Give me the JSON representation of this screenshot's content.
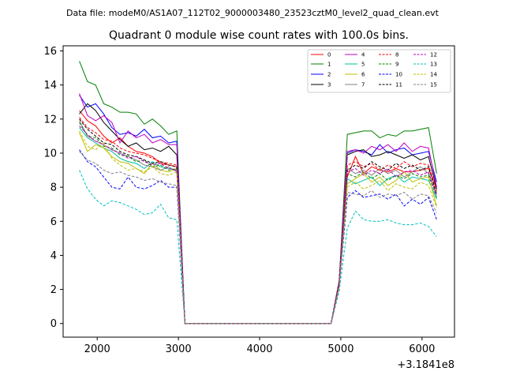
{
  "chart_data": {
    "type": "line",
    "suptitle": "Data file: modeM0/AS1A07_112T02_9000003480_23523cztM0_level2_quad_clean.evt",
    "title": "Quadrant 0 module wise count rates with 100.0s bins.",
    "x_offset_label": "+3.1841e8",
    "xlim": [
      1580,
      6400
    ],
    "ylim": [
      -0.8,
      16.3
    ],
    "xticks": [
      2000,
      3000,
      4000,
      5000,
      6000
    ],
    "yticks": [
      0,
      2,
      4,
      6,
      8,
      10,
      12,
      14,
      16
    ],
    "legend_position": "top-right",
    "x": [
      1780,
      1880,
      1980,
      2080,
      2180,
      2280,
      2380,
      2480,
      2580,
      2680,
      2780,
      2880,
      2980,
      3080,
      3180,
      3280,
      3380,
      3480,
      3580,
      3680,
      3780,
      3880,
      3980,
      4080,
      4180,
      4280,
      4380,
      4480,
      4580,
      4680,
      4780,
      4880,
      4980,
      5080,
      5180,
      5280,
      5380,
      5480,
      5580,
      5680,
      5780,
      5880,
      5980,
      6080,
      6180
    ],
    "series": [
      {
        "name": "0",
        "color": "#ff0000",
        "dash": "solid",
        "values": [
          12.5,
          11.9,
          11.6,
          11.0,
          10.6,
          10.9,
          10.4,
          10.1,
          10.0,
          9.8,
          9.4,
          9.3,
          9.2,
          0.0,
          0.0,
          0.0,
          0.0,
          0.0,
          0.0,
          0.0,
          0.0,
          0.0,
          0.0,
          0.0,
          0.0,
          0.0,
          0.0,
          0.0,
          0.0,
          0.0,
          0.0,
          0.0,
          2.5,
          8.6,
          9.8,
          8.8,
          9.2,
          9.0,
          8.9,
          9.1,
          8.9,
          8.9,
          9.0,
          9.1,
          7.9
        ]
      },
      {
        "name": "1",
        "color": "#008000",
        "dash": "solid",
        "values": [
          15.4,
          14.2,
          14.0,
          12.9,
          12.7,
          12.4,
          12.4,
          12.3,
          11.7,
          12.0,
          11.6,
          11.1,
          11.3,
          0.0,
          0.0,
          0.0,
          0.0,
          0.0,
          0.0,
          0.0,
          0.0,
          0.0,
          0.0,
          0.0,
          0.0,
          0.0,
          0.0,
          0.0,
          0.0,
          0.0,
          0.0,
          0.0,
          2.5,
          11.1,
          11.2,
          11.3,
          11.3,
          10.9,
          11.1,
          11.0,
          11.3,
          11.3,
          11.4,
          11.5,
          8.8
        ]
      },
      {
        "name": "2",
        "color": "#0000ff",
        "dash": "solid",
        "values": [
          13.4,
          12.7,
          12.9,
          12.3,
          11.5,
          11.1,
          11.2,
          11.0,
          11.4,
          10.9,
          11.0,
          10.6,
          10.7,
          0.0,
          0.0,
          0.0,
          0.0,
          0.0,
          0.0,
          0.0,
          0.0,
          0.0,
          0.0,
          0.0,
          0.0,
          0.0,
          0.0,
          0.0,
          0.0,
          0.0,
          0.0,
          0.0,
          2.5,
          10.0,
          10.2,
          10.1,
          9.9,
          10.5,
          10.0,
          10.2,
          10.3,
          9.9,
          10.0,
          10.1,
          8.3
        ]
      },
      {
        "name": "3",
        "color": "#000000",
        "dash": "solid",
        "values": [
          12.3,
          12.9,
          12.5,
          11.8,
          11.3,
          10.8,
          10.4,
          10.6,
          10.2,
          10.3,
          10.1,
          10.4,
          9.9,
          0.0,
          0.0,
          0.0,
          0.0,
          0.0,
          0.0,
          0.0,
          0.0,
          0.0,
          0.0,
          0.0,
          0.0,
          0.0,
          0.0,
          0.0,
          0.0,
          0.0,
          0.0,
          0.0,
          2.5,
          9.9,
          10.1,
          10.2,
          9.8,
          9.9,
          10.1,
          9.9,
          9.7,
          9.9,
          9.6,
          9.8,
          7.9
        ]
      },
      {
        "name": "4",
        "color": "#bf00bf",
        "dash": "solid",
        "values": [
          13.5,
          12.2,
          11.9,
          12.2,
          11.8,
          10.6,
          11.3,
          10.9,
          11.1,
          10.6,
          10.8,
          10.5,
          10.5,
          0.0,
          0.0,
          0.0,
          0.0,
          0.0,
          0.0,
          0.0,
          0.0,
          0.0,
          0.0,
          0.0,
          0.0,
          0.0,
          0.0,
          0.0,
          0.0,
          0.0,
          0.0,
          0.0,
          2.5,
          10.1,
          10.2,
          10.0,
          10.4,
          10.2,
          10.5,
          10.1,
          10.6,
          10.1,
          10.4,
          10.3,
          8.0
        ]
      },
      {
        "name": "5",
        "color": "#00bfa5",
        "dash": "solid",
        "values": [
          11.5,
          10.9,
          10.6,
          10.3,
          10.1,
          9.7,
          9.5,
          9.4,
          9.1,
          9.5,
          9.2,
          9.1,
          9.0,
          0.0,
          0.0,
          0.0,
          0.0,
          0.0,
          0.0,
          0.0,
          0.0,
          0.0,
          0.0,
          0.0,
          0.0,
          0.0,
          0.0,
          0.0,
          0.0,
          0.0,
          0.0,
          0.0,
          2.3,
          8.5,
          8.2,
          8.4,
          8.6,
          8.1,
          8.5,
          8.7,
          8.3,
          8.6,
          8.5,
          8.4,
          7.3
        ]
      },
      {
        "name": "6",
        "color": "#bfbf00",
        "dash": "solid",
        "values": [
          11.2,
          10.1,
          10.5,
          10.3,
          9.8,
          9.5,
          9.4,
          9.1,
          8.8,
          9.4,
          9.0,
          8.9,
          9.1,
          0.0,
          0.0,
          0.0,
          0.0,
          0.0,
          0.0,
          0.0,
          0.0,
          0.0,
          0.0,
          0.0,
          0.0,
          0.0,
          0.0,
          0.0,
          0.0,
          0.0,
          0.0,
          0.0,
          2.2,
          8.2,
          8.5,
          8.8,
          8.3,
          8.6,
          8.1,
          8.4,
          8.9,
          8.3,
          8.5,
          8.6,
          6.9
        ]
      },
      {
        "name": "7",
        "color": "#808080",
        "dash": "solid",
        "values": [
          11.9,
          11.0,
          10.7,
          10.5,
          10.2,
          10.0,
          9.8,
          9.6,
          9.3,
          9.2,
          9.0,
          9.2,
          8.9,
          0.0,
          0.0,
          0.0,
          0.0,
          0.0,
          0.0,
          0.0,
          0.0,
          0.0,
          0.0,
          0.0,
          0.0,
          0.0,
          0.0,
          0.0,
          0.0,
          0.0,
          0.0,
          0.0,
          2.4,
          9.1,
          8.8,
          9.0,
          8.7,
          9.1,
          8.8,
          9.0,
          8.6,
          8.9,
          9.2,
          8.8,
          7.6
        ]
      },
      {
        "name": "8",
        "color": "#ff0000",
        "dash": "dashed",
        "values": [
          12.1,
          11.5,
          11.2,
          10.8,
          10.7,
          10.3,
          10.1,
          10.0,
          9.9,
          9.7,
          9.5,
          9.4,
          9.3,
          0.0,
          0.0,
          0.0,
          0.0,
          0.0,
          0.0,
          0.0,
          0.0,
          0.0,
          0.0,
          0.0,
          0.0,
          0.0,
          0.0,
          0.0,
          0.0,
          0.0,
          0.0,
          0.0,
          2.4,
          9.3,
          9.5,
          9.2,
          9.4,
          9.0,
          9.3,
          9.1,
          9.5,
          9.2,
          9.4,
          9.3,
          7.8
        ]
      },
      {
        "name": "9",
        "color": "#008000",
        "dash": "dashed",
        "values": [
          11.8,
          11.0,
          10.9,
          10.4,
          10.3,
          9.9,
          9.8,
          9.5,
          9.6,
          9.2,
          9.3,
          9.0,
          9.1,
          0.0,
          0.0,
          0.0,
          0.0,
          0.0,
          0.0,
          0.0,
          0.0,
          0.0,
          0.0,
          0.0,
          0.0,
          0.0,
          0.0,
          0.0,
          0.0,
          0.0,
          0.0,
          0.0,
          2.3,
          8.8,
          8.6,
          8.9,
          8.5,
          8.8,
          8.4,
          8.7,
          8.5,
          8.8,
          8.6,
          8.7,
          7.4
        ]
      },
      {
        "name": "10",
        "color": "#0000ff",
        "dash": "dashed",
        "values": [
          10.2,
          9.5,
          9.2,
          8.6,
          8.0,
          7.9,
          8.6,
          8.0,
          7.9,
          8.1,
          8.4,
          8.0,
          8.0,
          0.0,
          0.0,
          0.0,
          0.0,
          0.0,
          0.0,
          0.0,
          0.0,
          0.0,
          0.0,
          0.0,
          0.0,
          0.0,
          0.0,
          0.0,
          0.0,
          0.0,
          0.0,
          0.0,
          2.1,
          7.4,
          7.8,
          7.4,
          7.5,
          7.6,
          7.3,
          7.6,
          6.9,
          7.3,
          7.0,
          7.4,
          6.1
        ]
      },
      {
        "name": "11",
        "color": "#000000",
        "dash": "dashed",
        "values": [
          12.0,
          11.4,
          11.0,
          10.6,
          10.5,
          10.1,
          9.9,
          9.8,
          9.6,
          9.4,
          9.5,
          9.3,
          9.2,
          0.0,
          0.0,
          0.0,
          0.0,
          0.0,
          0.0,
          0.0,
          0.0,
          0.0,
          0.0,
          0.0,
          0.0,
          0.0,
          0.0,
          0.0,
          0.0,
          0.0,
          0.0,
          0.0,
          2.4,
          9.0,
          9.3,
          9.1,
          9.5,
          9.2,
          9.0,
          9.4,
          9.1,
          9.3,
          9.0,
          9.2,
          7.6
        ]
      },
      {
        "name": "12",
        "color": "#bf00bf",
        "dash": "dashed",
        "values": [
          11.6,
          11.1,
          10.7,
          10.5,
          10.2,
          10.0,
          9.7,
          9.8,
          9.5,
          9.3,
          9.4,
          9.1,
          9.0,
          0.0,
          0.0,
          0.0,
          0.0,
          0.0,
          0.0,
          0.0,
          0.0,
          0.0,
          0.0,
          0.0,
          0.0,
          0.0,
          0.0,
          0.0,
          0.0,
          0.0,
          0.0,
          0.0,
          2.3,
          8.9,
          9.1,
          8.7,
          9.0,
          8.8,
          9.1,
          8.6,
          8.9,
          9.0,
          8.7,
          8.9,
          7.5
        ]
      },
      {
        "name": "13",
        "color": "#00bfbf",
        "dash": "dashed",
        "values": [
          9.0,
          7.9,
          7.3,
          6.9,
          7.2,
          7.1,
          6.9,
          6.7,
          6.4,
          6.5,
          7.0,
          6.2,
          6.1,
          0.0,
          0.0,
          0.0,
          0.0,
          0.0,
          0.0,
          0.0,
          0.0,
          0.0,
          0.0,
          0.0,
          0.0,
          0.0,
          0.0,
          0.0,
          0.0,
          0.0,
          0.0,
          0.0,
          1.9,
          5.6,
          6.6,
          6.1,
          6.0,
          6.0,
          6.1,
          5.9,
          5.8,
          5.8,
          5.9,
          5.7,
          5.1
        ]
      },
      {
        "name": "14",
        "color": "#bfbf00",
        "dash": "dashed",
        "values": [
          11.3,
          10.4,
          10.2,
          10.6,
          9.7,
          9.3,
          9.0,
          9.1,
          8.9,
          9.2,
          8.8,
          8.7,
          8.9,
          0.0,
          0.0,
          0.0,
          0.0,
          0.0,
          0.0,
          0.0,
          0.0,
          0.0,
          0.0,
          0.0,
          0.0,
          0.0,
          0.0,
          0.0,
          0.0,
          0.0,
          0.0,
          0.0,
          2.2,
          8.0,
          8.3,
          7.9,
          8.1,
          8.4,
          7.8,
          8.2,
          8.0,
          7.9,
          8.3,
          8.1,
          6.8
        ]
      },
      {
        "name": "15",
        "color": "#808080",
        "dash": "dashed",
        "values": [
          10.1,
          9.6,
          9.4,
          9.0,
          8.8,
          8.9,
          8.7,
          8.6,
          8.4,
          8.5,
          8.3,
          8.2,
          8.1,
          0.0,
          0.0,
          0.0,
          0.0,
          0.0,
          0.0,
          0.0,
          0.0,
          0.0,
          0.0,
          0.0,
          0.0,
          0.0,
          0.0,
          0.0,
          0.0,
          0.0,
          0.0,
          0.0,
          2.1,
          7.7,
          7.6,
          7.5,
          7.8,
          7.4,
          7.6,
          7.5,
          7.7,
          7.3,
          7.6,
          7.5,
          6.5
        ]
      }
    ]
  }
}
